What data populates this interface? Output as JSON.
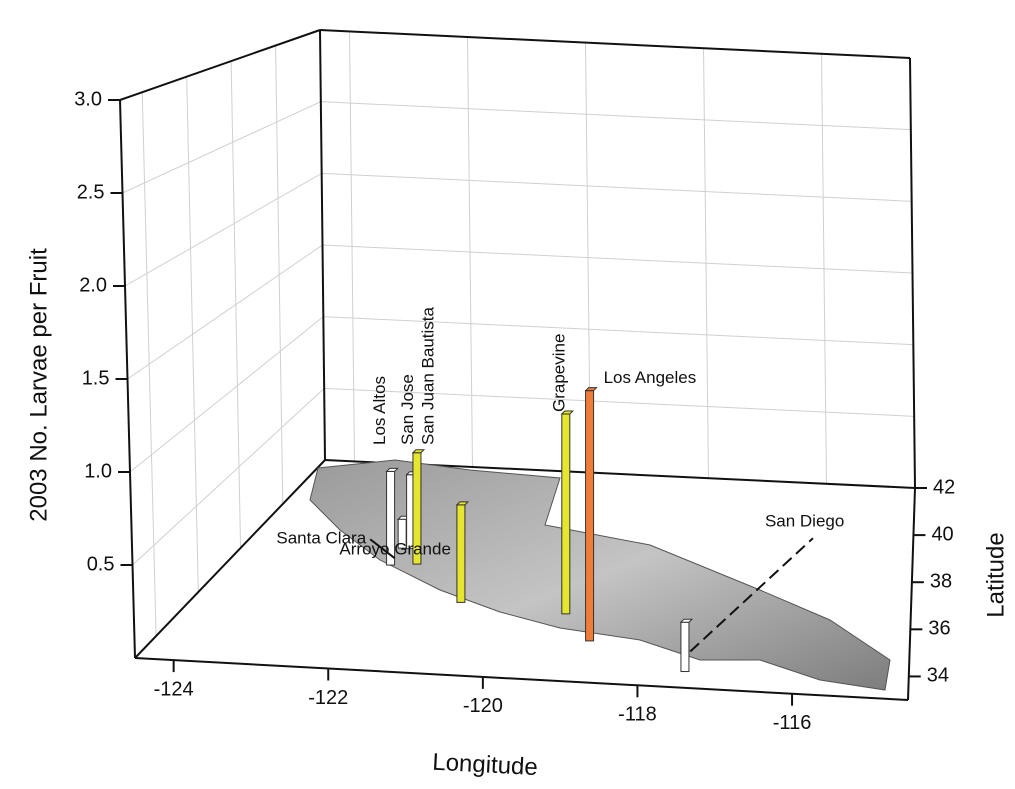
{
  "chart_data": {
    "type": "bar3d",
    "zlabel": "2003 No. Larvae per Fruit",
    "xlabel": "Longitude",
    "ylabel": "Latitude",
    "categories": [
      "Los Altos",
      "Santa Clara",
      "San Jose",
      "San Juan Bautista",
      "Arroyo Grande",
      "Grapevine",
      "Los Angeles",
      "San Diego"
    ],
    "x": [
      -122.14,
      -122.17,
      -122.03,
      -121.77,
      -120.81,
      -119.26,
      -118.76,
      -117.43
    ],
    "y": [
      37.6,
      38.35,
      38.35,
      37.7,
      36.15,
      35.9,
      34.8,
      33.7
    ],
    "values": [
      0.57,
      0.18,
      0.46,
      0.68,
      0.57,
      1.16,
      1.41,
      0.27
    ],
    "colors": [
      "#ffffff",
      "#ffffff",
      "#ffffff",
      "#e6e62e",
      "#e6e62e",
      "#e6e62e",
      "#f07c3a",
      "#ffffff"
    ],
    "xlim": [
      -124.5,
      -114.5
    ],
    "xticks": [
      -124,
      -122,
      -120,
      -118,
      -116
    ],
    "ylim": [
      33,
      42
    ],
    "yticks": [
      34,
      36,
      38,
      40,
      42
    ],
    "zlim": [
      0,
      3
    ],
    "zticks": [
      0.5,
      {
        "value": 1,
        "label": "1.0"
      },
      1.5,
      {
        "value": 2,
        "label": "2.0"
      },
      2.5,
      {
        "value": 3,
        "label": "3.0"
      }
    ],
    "grid": true
  }
}
